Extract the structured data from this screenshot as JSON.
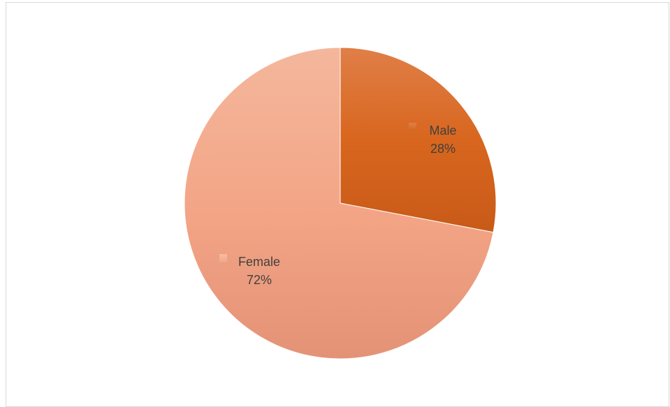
{
  "chart_data": {
    "type": "pie",
    "title": "",
    "categories": [
      "Male",
      "Female"
    ],
    "values": [
      28,
      72
    ],
    "labels": [
      "Male\n28%",
      "Female\n72%"
    ],
    "percent_labels": [
      "28%",
      "72%"
    ],
    "colors": {
      "Male": "#D2691E",
      "Female": "#F4A98A"
    },
    "start_angle_deg": 0,
    "direction": "clockwise",
    "legend": "none",
    "data_labels": "inside"
  }
}
